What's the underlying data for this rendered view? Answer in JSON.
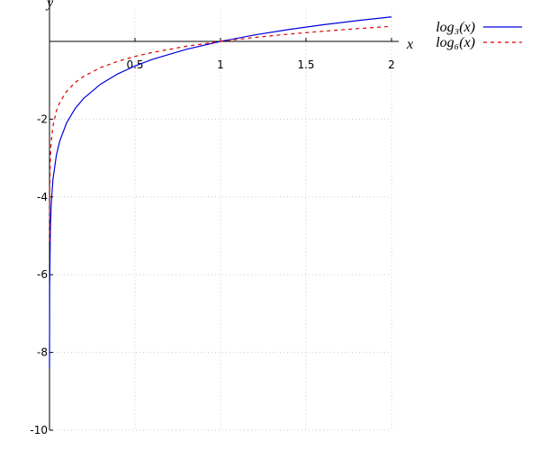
{
  "chart_data": {
    "type": "line",
    "xlabel": "x",
    "ylabel": "y",
    "x": [
      0.0001,
      0.001,
      0.005,
      0.01,
      0.02,
      0.04,
      0.06,
      0.1,
      0.15,
      0.2,
      0.3,
      0.4,
      0.5,
      0.6,
      0.8,
      1,
      1.2,
      1.4,
      1.6,
      1.8,
      2
    ],
    "series": [
      {
        "name": "log₃(x)",
        "color": "#0000dd",
        "dash": false,
        "values": [
          -8.384,
          -6.288,
          -4.823,
          -4.192,
          -3.561,
          -2.93,
          -2.561,
          -2.096,
          -1.727,
          -1.465,
          -1.096,
          -0.834,
          -0.631,
          -0.465,
          -0.203,
          0,
          0.166,
          0.306,
          0.428,
          0.535,
          0.631
        ]
      },
      {
        "name": "log₆(x)",
        "color": "#dd0000",
        "dash": true,
        "values": [
          -5.14,
          -3.855,
          -2.957,
          -2.57,
          -2.183,
          -1.796,
          -1.57,
          -1.285,
          -1.059,
          -0.898,
          -0.672,
          -0.511,
          -0.387,
          -0.285,
          -0.125,
          0,
          0.102,
          0.188,
          0.262,
          0.328,
          0.387
        ]
      }
    ],
    "xlim": [
      0,
      2
    ],
    "ylim": [
      -10,
      0.8
    ],
    "xticks": [
      0.5,
      1,
      1.5,
      2
    ],
    "yticks": [
      -10,
      -8,
      -6,
      -4,
      -2
    ],
    "grid": true,
    "legend": "top-right"
  }
}
